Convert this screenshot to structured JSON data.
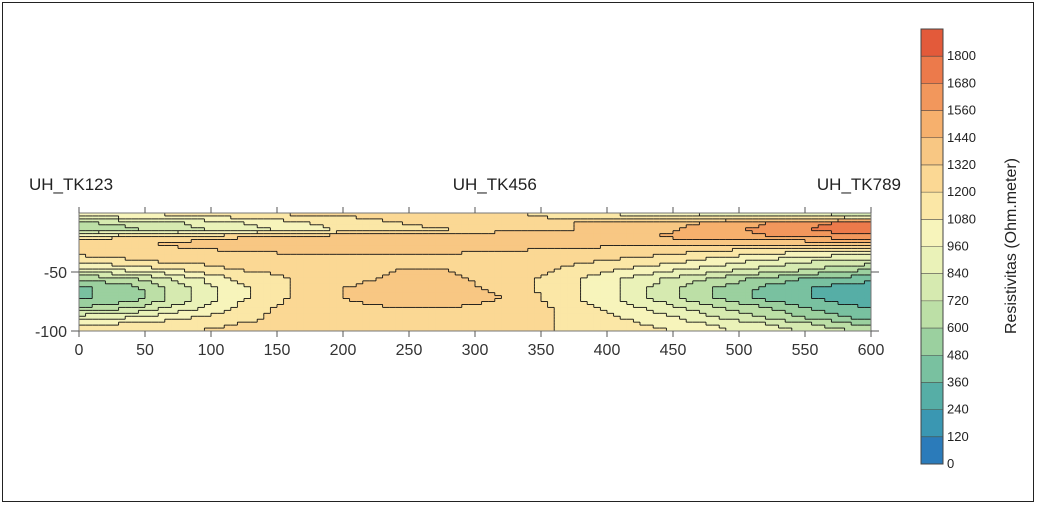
{
  "chart_data": {
    "type": "heatmap",
    "title": "",
    "xlabel": "",
    "ylabel": "",
    "xlim": [
      0,
      600
    ],
    "ylim": [
      -100,
      0
    ],
    "x_ticks": [
      0,
      50,
      100,
      150,
      200,
      250,
      300,
      350,
      400,
      450,
      500,
      550,
      600
    ],
    "y_ticks": [
      -50,
      -100
    ],
    "boreholes": [
      {
        "label": "UH_TK123",
        "x": 0
      },
      {
        "label": "UH_TK456",
        "x": 315
      },
      {
        "label": "UH_TK789",
        "x": 600
      }
    ],
    "colorbar": {
      "title": "Resistivitas (Ohm.meter)",
      "levels": [
        0,
        120,
        240,
        360,
        480,
        600,
        720,
        840,
        960,
        1080,
        1200,
        1320,
        1440,
        1560,
        1680,
        1800,
        1920
      ],
      "labels": [
        "1800",
        "1680",
        "1560",
        "1440",
        "1320",
        "1200",
        "1080",
        "960",
        "840",
        "720",
        "600",
        "480",
        "360",
        "240",
        "120",
        "0"
      ],
      "colors": [
        "#2b7bba",
        "#3a97b2",
        "#56aea6",
        "#79c1a0",
        "#9bd09f",
        "#bcdfa6",
        "#d6eab0",
        "#eaf2b8",
        "#f7f4bb",
        "#fbe7a6",
        "#fbd894",
        "#f8c783",
        "#f6b06d",
        "#f2975c",
        "#ec7a4b",
        "#e35a3a"
      ]
    },
    "x_samples": [
      0,
      40,
      80,
      120,
      160,
      200,
      240,
      280,
      320,
      360,
      400,
      440,
      480,
      520,
      560,
      600
    ],
    "depth_samples": [
      -2,
      -8,
      -14,
      -20,
      -26,
      -32,
      -40,
      -48,
      -56,
      -64,
      -72,
      -80,
      -88,
      -94,
      -100
    ],
    "resistivity": [
      [
        1000,
        1050,
        1100,
        1150,
        1200,
        1200,
        1250,
        1300,
        1250,
        1150,
        1100,
        1000,
        950,
        900,
        850,
        800
      ],
      [
        700,
        780,
        850,
        950,
        1050,
        1150,
        1200,
        1250,
        1300,
        1300,
        1350,
        1400,
        1450,
        1550,
        1650,
        1750
      ],
      [
        600,
        700,
        800,
        900,
        1000,
        1100,
        1150,
        1200,
        1250,
        1300,
        1350,
        1400,
        1500,
        1600,
        1700,
        1800
      ],
      [
        1150,
        1200,
        1250,
        1300,
        1350,
        1400,
        1400,
        1420,
        1450,
        1450,
        1450,
        1450,
        1500,
        1550,
        1600,
        1650
      ],
      [
        1250,
        1300,
        1350,
        1400,
        1400,
        1420,
        1420,
        1420,
        1400,
        1380,
        1350,
        1350,
        1350,
        1350,
        1350,
        1400
      ],
      [
        1250,
        1250,
        1300,
        1320,
        1330,
        1330,
        1330,
        1330,
        1320,
        1300,
        1280,
        1250,
        1200,
        1150,
        1100,
        1100
      ],
      [
        1150,
        1200,
        1250,
        1280,
        1300,
        1300,
        1300,
        1300,
        1280,
        1250,
        1200,
        1150,
        1050,
        950,
        850,
        800
      ],
      [
        900,
        1000,
        1100,
        1200,
        1250,
        1300,
        1320,
        1320,
        1300,
        1200,
        1100,
        1000,
        900,
        800,
        700,
        600
      ],
      [
        600,
        700,
        900,
        1100,
        1200,
        1300,
        1330,
        1330,
        1300,
        1150,
        1000,
        850,
        700,
        550,
        450,
        400
      ],
      [
        450,
        550,
        800,
        1050,
        1200,
        1320,
        1350,
        1350,
        1300,
        1150,
        1000,
        800,
        600,
        450,
        350,
        250
      ],
      [
        450,
        550,
        800,
        1050,
        1200,
        1320,
        1360,
        1360,
        1320,
        1150,
        1000,
        800,
        600,
        450,
        350,
        250
      ],
      [
        600,
        700,
        900,
        1100,
        1250,
        1300,
        1320,
        1320,
        1300,
        1200,
        1050,
        900,
        750,
        600,
        450,
        350
      ],
      [
        900,
        950,
        1050,
        1150,
        1250,
        1300,
        1300,
        1300,
        1280,
        1200,
        1100,
        1000,
        850,
        700,
        550,
        400
      ],
      [
        1050,
        1100,
        1150,
        1200,
        1250,
        1280,
        1280,
        1280,
        1250,
        1200,
        1150,
        1050,
        950,
        850,
        700,
        550
      ],
      [
        1150,
        1180,
        1200,
        1220,
        1250,
        1250,
        1250,
        1250,
        1230,
        1200,
        1150,
        1100,
        1000,
        900,
        800,
        700
      ]
    ]
  }
}
